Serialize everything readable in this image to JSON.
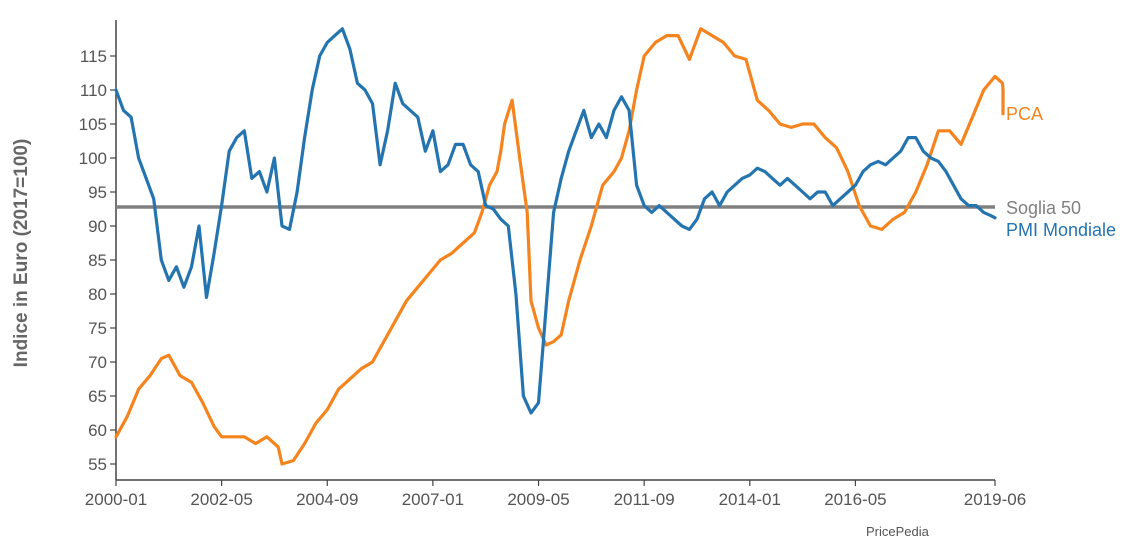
{
  "chart_data": {
    "type": "line",
    "title": "",
    "xlabel": "",
    "ylabel": "Indice in Euro (2017=100)",
    "x_ticks": [
      "2000-01",
      "2002-05",
      "2004-09",
      "2007-01",
      "2009-05",
      "2011-09",
      "2014-01",
      "2016-05",
      "2019-06"
    ],
    "y_ticks": [
      55,
      60,
      65,
      70,
      75,
      80,
      85,
      90,
      95,
      100,
      105,
      110,
      115
    ],
    "ylim": [
      52.5,
      120
    ],
    "xlim": [
      "2000-01",
      "2019-06"
    ],
    "grid": false,
    "source": "PricePedia",
    "reference_line": {
      "name": "Soglia 50",
      "value": 92.8,
      "color": "#808080"
    },
    "series": [
      {
        "name": "PCA",
        "color": "#F5841F",
        "points": [
          [
            "2000-01",
            59
          ],
          [
            "2000-04",
            62
          ],
          [
            "2000-07",
            66
          ],
          [
            "2000-10",
            68
          ],
          [
            "2001-01",
            70.5
          ],
          [
            "2001-03",
            71
          ],
          [
            "2001-06",
            68
          ],
          [
            "2001-09",
            67
          ],
          [
            "2001-12",
            64
          ],
          [
            "2002-03",
            60.5
          ],
          [
            "2002-05",
            59
          ],
          [
            "2002-08",
            59
          ],
          [
            "2002-11",
            59
          ],
          [
            "2003-02",
            58
          ],
          [
            "2003-05",
            59
          ],
          [
            "2003-08",
            57.5
          ],
          [
            "2003-09",
            55
          ],
          [
            "2003-12",
            55.5
          ],
          [
            "2004-03",
            58
          ],
          [
            "2004-06",
            61
          ],
          [
            "2004-09",
            63
          ],
          [
            "2004-12",
            66
          ],
          [
            "2005-03",
            67.5
          ],
          [
            "2005-06",
            69
          ],
          [
            "2005-09",
            70
          ],
          [
            "2005-12",
            73
          ],
          [
            "2006-03",
            76
          ],
          [
            "2006-06",
            79
          ],
          [
            "2006-09",
            81
          ],
          [
            "2006-12",
            83
          ],
          [
            "2007-03",
            85
          ],
          [
            "2007-06",
            86
          ],
          [
            "2007-09",
            87.5
          ],
          [
            "2007-12",
            89
          ],
          [
            "2008-02",
            92
          ],
          [
            "2008-04",
            96
          ],
          [
            "2008-06",
            98
          ],
          [
            "2008-07",
            101
          ],
          [
            "2008-08",
            105
          ],
          [
            "2008-10",
            108.5
          ],
          [
            "2008-12",
            100
          ],
          [
            "2009-02",
            92
          ],
          [
            "2009-03",
            79
          ],
          [
            "2009-05",
            75
          ],
          [
            "2009-07",
            72.5
          ],
          [
            "2009-09",
            73
          ],
          [
            "2009-11",
            74
          ],
          [
            "2010-01",
            79
          ],
          [
            "2010-04",
            85
          ],
          [
            "2010-07",
            90
          ],
          [
            "2010-10",
            96
          ],
          [
            "2011-01",
            98
          ],
          [
            "2011-03",
            100
          ],
          [
            "2011-05",
            104
          ],
          [
            "2011-07",
            110
          ],
          [
            "2011-09",
            115
          ],
          [
            "2011-12",
            117
          ],
          [
            "2012-03",
            118
          ],
          [
            "2012-06",
            118
          ],
          [
            "2012-09",
            114.5
          ],
          [
            "2012-12",
            119
          ],
          [
            "2013-03",
            118
          ],
          [
            "2013-06",
            117
          ],
          [
            "2013-09",
            115
          ],
          [
            "2013-12",
            114.5
          ],
          [
            "2014-03",
            108.5
          ],
          [
            "2014-06",
            107
          ],
          [
            "2014-09",
            105
          ],
          [
            "2014-12",
            104.5
          ],
          [
            "2015-03",
            105
          ],
          [
            "2015-06",
            105
          ],
          [
            "2015-09",
            103
          ],
          [
            "2015-12",
            101.5
          ],
          [
            "2016-03",
            98
          ],
          [
            "2016-06",
            93
          ],
          [
            "2016-09",
            90
          ],
          [
            "2016-12",
            89.5
          ],
          [
            "2017-03",
            91
          ],
          [
            "2017-06",
            92
          ],
          [
            "2017-09",
            95
          ],
          [
            "2017-12",
            99
          ],
          [
            "2018-03",
            104
          ],
          [
            "2018-06",
            104
          ],
          [
            "2018-09",
            102
          ],
          [
            "2018-12",
            106
          ],
          [
            "2019-03",
            110
          ],
          [
            "2019-06",
            112
          ],
          [
            "2019-08",
            111
          ],
          [
            "2019-10",
            110
          ],
          [
            "2019-12",
            109
          ],
          [
            "2020-02",
            107
          ],
          [
            "2020-03",
            106.5
          ]
        ]
      },
      {
        "name": "PMI Mondiale",
        "color": "#2474B0",
        "points": [
          [
            "2000-01",
            110
          ],
          [
            "2000-03",
            107
          ],
          [
            "2000-05",
            106
          ],
          [
            "2000-07",
            100
          ],
          [
            "2000-09",
            97
          ],
          [
            "2000-11",
            94
          ],
          [
            "2001-01",
            85
          ],
          [
            "2001-03",
            82
          ],
          [
            "2001-05",
            84
          ],
          [
            "2001-07",
            81
          ],
          [
            "2001-09",
            84
          ],
          [
            "2001-11",
            90
          ],
          [
            "2002-01",
            79.5
          ],
          [
            "2002-03",
            86
          ],
          [
            "2002-05",
            93
          ],
          [
            "2002-07",
            101
          ],
          [
            "2002-09",
            103
          ],
          [
            "2002-11",
            104
          ],
          [
            "2003-01",
            97
          ],
          [
            "2003-03",
            98
          ],
          [
            "2003-05",
            95
          ],
          [
            "2003-07",
            100
          ],
          [
            "2003-09",
            90
          ],
          [
            "2003-11",
            89.5
          ],
          [
            "2004-01",
            95
          ],
          [
            "2004-03",
            103
          ],
          [
            "2004-05",
            110
          ],
          [
            "2004-07",
            115
          ],
          [
            "2004-09",
            117
          ],
          [
            "2004-11",
            118
          ],
          [
            "2005-01",
            119
          ],
          [
            "2005-03",
            116
          ],
          [
            "2005-05",
            111
          ],
          [
            "2005-07",
            110
          ],
          [
            "2005-09",
            108
          ],
          [
            "2005-11",
            99
          ],
          [
            "2006-01",
            104
          ],
          [
            "2006-03",
            111
          ],
          [
            "2006-05",
            108
          ],
          [
            "2006-07",
            107
          ],
          [
            "2006-09",
            106
          ],
          [
            "2006-11",
            101
          ],
          [
            "2007-01",
            104
          ],
          [
            "2007-03",
            98
          ],
          [
            "2007-05",
            99
          ],
          [
            "2007-07",
            102
          ],
          [
            "2007-09",
            102
          ],
          [
            "2007-11",
            99
          ],
          [
            "2008-01",
            98
          ],
          [
            "2008-03",
            93
          ],
          [
            "2008-05",
            92.5
          ],
          [
            "2008-07",
            91
          ],
          [
            "2008-09",
            90
          ],
          [
            "2008-11",
            80
          ],
          [
            "2009-01",
            65
          ],
          [
            "2009-03",
            62.5
          ],
          [
            "2009-05",
            64
          ],
          [
            "2009-07",
            78
          ],
          [
            "2009-09",
            92
          ],
          [
            "2009-11",
            97
          ],
          [
            "2010-01",
            101
          ],
          [
            "2010-03",
            104
          ],
          [
            "2010-05",
            107
          ],
          [
            "2010-07",
            103
          ],
          [
            "2010-09",
            105
          ],
          [
            "2010-11",
            103
          ],
          [
            "2011-01",
            107
          ],
          [
            "2011-03",
            109
          ],
          [
            "2011-05",
            107
          ],
          [
            "2011-07",
            96
          ],
          [
            "2011-09",
            93
          ],
          [
            "2011-11",
            92
          ],
          [
            "2012-01",
            93
          ],
          [
            "2012-03",
            92
          ],
          [
            "2012-05",
            91
          ],
          [
            "2012-07",
            90
          ],
          [
            "2012-09",
            89.5
          ],
          [
            "2012-11",
            91
          ],
          [
            "2013-01",
            94
          ],
          [
            "2013-03",
            95
          ],
          [
            "2013-05",
            93
          ],
          [
            "2013-07",
            95
          ],
          [
            "2013-09",
            96
          ],
          [
            "2013-11",
            97
          ],
          [
            "2014-01",
            97.5
          ],
          [
            "2014-03",
            98.5
          ],
          [
            "2014-05",
            98
          ],
          [
            "2014-07",
            97
          ],
          [
            "2014-09",
            96
          ],
          [
            "2014-11",
            97
          ],
          [
            "2015-01",
            96
          ],
          [
            "2015-03",
            95
          ],
          [
            "2015-05",
            94
          ],
          [
            "2015-07",
            95
          ],
          [
            "2015-09",
            95
          ],
          [
            "2015-11",
            93
          ],
          [
            "2016-01",
            94
          ],
          [
            "2016-03",
            95
          ],
          [
            "2016-05",
            96
          ],
          [
            "2016-07",
            98
          ],
          [
            "2016-09",
            99
          ],
          [
            "2016-11",
            99.5
          ],
          [
            "2017-01",
            99
          ],
          [
            "2017-03",
            100
          ],
          [
            "2017-05",
            101
          ],
          [
            "2017-07",
            103
          ],
          [
            "2017-09",
            103
          ],
          [
            "2017-11",
            101
          ],
          [
            "2018-01",
            100
          ],
          [
            "2018-03",
            99.5
          ],
          [
            "2018-05",
            98
          ],
          [
            "2018-07",
            96
          ],
          [
            "2018-09",
            94
          ],
          [
            "2018-11",
            93
          ],
          [
            "2019-01",
            93
          ],
          [
            "2019-03",
            92
          ],
          [
            "2019-05",
            91.5
          ],
          [
            "2019-06",
            91.2
          ]
        ]
      }
    ]
  }
}
